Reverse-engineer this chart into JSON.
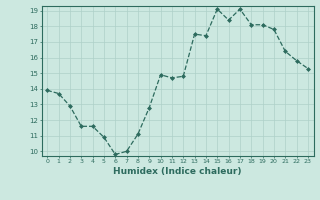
{
  "x": [
    0,
    1,
    2,
    3,
    4,
    5,
    6,
    7,
    8,
    9,
    10,
    11,
    12,
    13,
    14,
    15,
    16,
    17,
    18,
    19,
    20,
    21,
    22,
    23
  ],
  "y": [
    13.9,
    13.7,
    12.9,
    11.6,
    11.6,
    10.9,
    9.8,
    10.0,
    11.1,
    12.8,
    14.9,
    14.7,
    14.8,
    17.5,
    17.4,
    19.1,
    18.4,
    19.1,
    18.1,
    18.1,
    17.8,
    16.4,
    15.8,
    15.3
  ],
  "xlim": [
    -0.5,
    23.5
  ],
  "ylim": [
    9.7,
    19.3
  ],
  "yticks": [
    10,
    11,
    12,
    13,
    14,
    15,
    16,
    17,
    18,
    19
  ],
  "xticks": [
    0,
    1,
    2,
    3,
    4,
    5,
    6,
    7,
    8,
    9,
    10,
    11,
    12,
    13,
    14,
    15,
    16,
    17,
    18,
    19,
    20,
    21,
    22,
    23
  ],
  "xlabel": "Humidex (Indice chaleur)",
  "line_color": "#2d6b5e",
  "marker": "D",
  "marker_size": 2.0,
  "background_color": "#cce8e0",
  "grid_color": "#aed0c8",
  "tick_color": "#2d6b5e",
  "spine_color": "#2d6b5e"
}
